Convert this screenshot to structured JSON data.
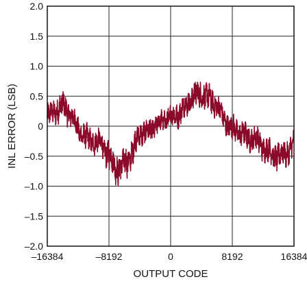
{
  "chart_data": {
    "type": "line",
    "title": "",
    "xlabel": "OUTPUT CODE",
    "ylabel": "INL ERROR (LSB)",
    "xlim": [
      -16384,
      16384
    ],
    "ylim": [
      -2.0,
      2.0
    ],
    "x_ticks": [
      -16384,
      -8192,
      0,
      8192,
      16384
    ],
    "x_tick_labels": [
      "–16384",
      "–8192",
      "0",
      "8192",
      "16384"
    ],
    "y_ticks": [
      -2.0,
      -1.5,
      -1.0,
      -0.5,
      0,
      0.5,
      1.0,
      1.5,
      2.0
    ],
    "y_tick_labels": [
      "–2.0",
      "–1.5",
      "–1.0",
      "–0.5",
      "0",
      "0.5",
      "1.0",
      "1.5",
      "2.0"
    ],
    "grid": true,
    "legend": "none",
    "series_color": "#8B0A2A",
    "series": [
      {
        "x": [
          -16384,
          -15360,
          -14336,
          -13312,
          -12288,
          -11264,
          -10240,
          -9216,
          -8192,
          -7168,
          -6144,
          -5120,
          -4096,
          -3072,
          -2048,
          -1024,
          0,
          1024,
          2048,
          3072,
          4096,
          5120,
          6144,
          7168,
          8192,
          9216,
          10240,
          11264,
          12288,
          13312,
          14336,
          15360,
          16384
        ],
        "center": [
          0.15,
          0.25,
          0.35,
          0.2,
          -0.05,
          -0.2,
          -0.25,
          -0.3,
          -0.5,
          -0.7,
          -0.65,
          -0.45,
          -0.1,
          -0.1,
          0.0,
          0.1,
          0.15,
          0.2,
          0.35,
          0.5,
          0.55,
          0.45,
          0.35,
          0.1,
          -0.05,
          -0.1,
          -0.2,
          -0.2,
          -0.35,
          -0.45,
          -0.5,
          -0.45,
          -0.3
        ],
        "band": [
          0.35,
          0.35,
          0.4,
          0.35,
          0.35,
          0.35,
          0.35,
          0.35,
          0.4,
          0.45,
          0.45,
          0.4,
          0.35,
          0.35,
          0.3,
          0.3,
          0.35,
          0.35,
          0.35,
          0.4,
          0.4,
          0.4,
          0.35,
          0.35,
          0.35,
          0.35,
          0.35,
          0.35,
          0.35,
          0.35,
          0.4,
          0.35,
          0.35
        ]
      }
    ]
  }
}
